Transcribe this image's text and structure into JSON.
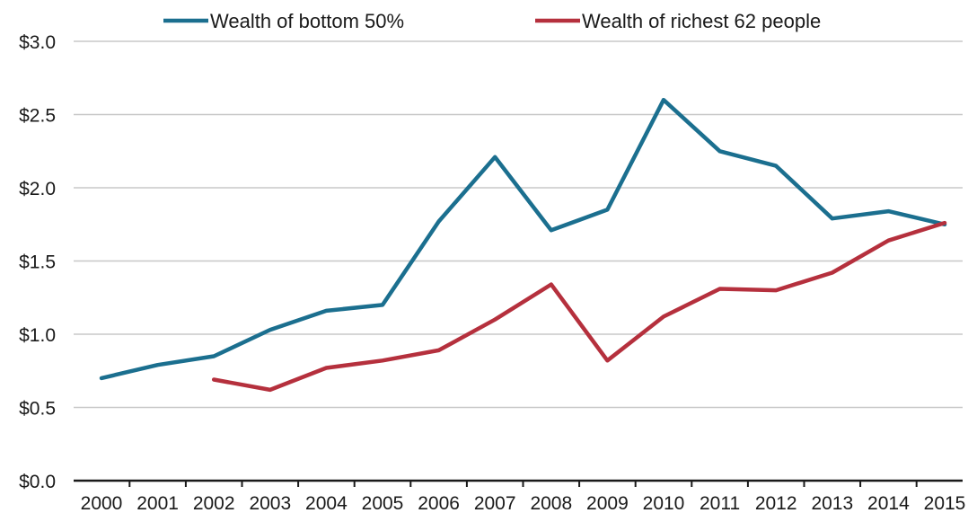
{
  "chart_data": {
    "type": "line",
    "title": "",
    "xlabel": "",
    "ylabel": "",
    "x": [
      2000,
      2001,
      2002,
      2003,
      2004,
      2005,
      2006,
      2007,
      2008,
      2009,
      2010,
      2011,
      2012,
      2013,
      2014,
      2015
    ],
    "x_tick_labels": [
      "2000",
      "2001",
      "2002",
      "2003",
      "2004",
      "2005",
      "2006",
      "2007",
      "2008",
      "2009",
      "2010",
      "2011",
      "2012",
      "2013",
      "2014",
      "2015"
    ],
    "ylim": [
      0,
      3.0
    ],
    "y_ticks": [
      0,
      0.5,
      1.0,
      1.5,
      2.0,
      2.5,
      3.0
    ],
    "y_tick_labels": [
      "$0.0",
      "$0.5",
      "$1.0",
      "$1.5",
      "$2.0",
      "$2.5",
      "$3.0"
    ],
    "grid": true,
    "legend_position": "top-center",
    "series": [
      {
        "name": "Wealth of bottom 50%",
        "color": "#1b6f8f",
        "values": [
          0.7,
          0.79,
          0.85,
          1.03,
          1.16,
          1.2,
          1.77,
          2.21,
          1.71,
          1.85,
          2.6,
          2.25,
          2.15,
          1.79,
          1.84,
          1.75
        ]
      },
      {
        "name": "Wealth of richest 62 people",
        "color": "#b5303d",
        "values": [
          null,
          null,
          0.69,
          0.62,
          0.77,
          0.82,
          0.89,
          1.1,
          1.34,
          0.82,
          1.12,
          1.31,
          1.3,
          1.42,
          1.64,
          1.76
        ]
      }
    ]
  }
}
